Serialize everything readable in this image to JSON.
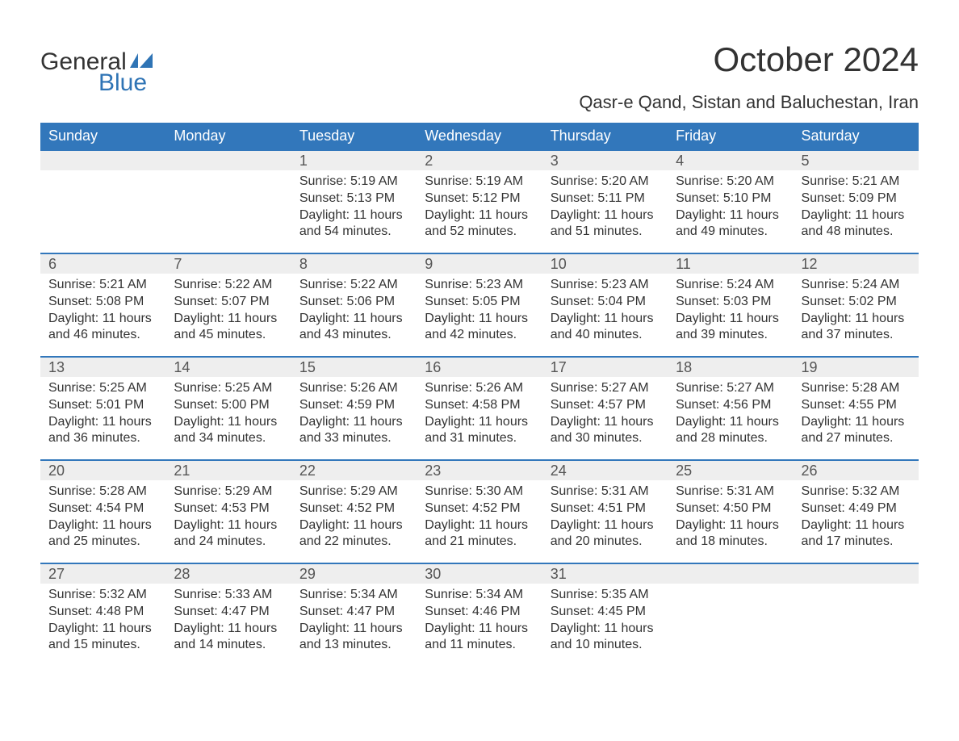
{
  "logo": {
    "line1": "General",
    "line2": "Blue"
  },
  "title": "October 2024",
  "location": "Qasr-e Qand, Sistan and Baluchestan, Iran",
  "colors": {
    "header": "#3277bb",
    "header_text": "#ffffff",
    "daynum_bg": "#eeeeee",
    "text": "#333333",
    "accent": "#2f74b5"
  },
  "day_names": [
    "Sunday",
    "Monday",
    "Tuesday",
    "Wednesday",
    "Thursday",
    "Friday",
    "Saturday"
  ],
  "weeks": [
    [
      {
        "n": "",
        "sunrise": "",
        "sunset": "",
        "daylight": ""
      },
      {
        "n": "",
        "sunrise": "",
        "sunset": "",
        "daylight": ""
      },
      {
        "n": "1",
        "sunrise": "Sunrise: 5:19 AM",
        "sunset": "Sunset: 5:13 PM",
        "daylight": "Daylight: 11 hours and 54 minutes."
      },
      {
        "n": "2",
        "sunrise": "Sunrise: 5:19 AM",
        "sunset": "Sunset: 5:12 PM",
        "daylight": "Daylight: 11 hours and 52 minutes."
      },
      {
        "n": "3",
        "sunrise": "Sunrise: 5:20 AM",
        "sunset": "Sunset: 5:11 PM",
        "daylight": "Daylight: 11 hours and 51 minutes."
      },
      {
        "n": "4",
        "sunrise": "Sunrise: 5:20 AM",
        "sunset": "Sunset: 5:10 PM",
        "daylight": "Daylight: 11 hours and 49 minutes."
      },
      {
        "n": "5",
        "sunrise": "Sunrise: 5:21 AM",
        "sunset": "Sunset: 5:09 PM",
        "daylight": "Daylight: 11 hours and 48 minutes."
      }
    ],
    [
      {
        "n": "6",
        "sunrise": "Sunrise: 5:21 AM",
        "sunset": "Sunset: 5:08 PM",
        "daylight": "Daylight: 11 hours and 46 minutes."
      },
      {
        "n": "7",
        "sunrise": "Sunrise: 5:22 AM",
        "sunset": "Sunset: 5:07 PM",
        "daylight": "Daylight: 11 hours and 45 minutes."
      },
      {
        "n": "8",
        "sunrise": "Sunrise: 5:22 AM",
        "sunset": "Sunset: 5:06 PM",
        "daylight": "Daylight: 11 hours and 43 minutes."
      },
      {
        "n": "9",
        "sunrise": "Sunrise: 5:23 AM",
        "sunset": "Sunset: 5:05 PM",
        "daylight": "Daylight: 11 hours and 42 minutes."
      },
      {
        "n": "10",
        "sunrise": "Sunrise: 5:23 AM",
        "sunset": "Sunset: 5:04 PM",
        "daylight": "Daylight: 11 hours and 40 minutes."
      },
      {
        "n": "11",
        "sunrise": "Sunrise: 5:24 AM",
        "sunset": "Sunset: 5:03 PM",
        "daylight": "Daylight: 11 hours and 39 minutes."
      },
      {
        "n": "12",
        "sunrise": "Sunrise: 5:24 AM",
        "sunset": "Sunset: 5:02 PM",
        "daylight": "Daylight: 11 hours and 37 minutes."
      }
    ],
    [
      {
        "n": "13",
        "sunrise": "Sunrise: 5:25 AM",
        "sunset": "Sunset: 5:01 PM",
        "daylight": "Daylight: 11 hours and 36 minutes."
      },
      {
        "n": "14",
        "sunrise": "Sunrise: 5:25 AM",
        "sunset": "Sunset: 5:00 PM",
        "daylight": "Daylight: 11 hours and 34 minutes."
      },
      {
        "n": "15",
        "sunrise": "Sunrise: 5:26 AM",
        "sunset": "Sunset: 4:59 PM",
        "daylight": "Daylight: 11 hours and 33 minutes."
      },
      {
        "n": "16",
        "sunrise": "Sunrise: 5:26 AM",
        "sunset": "Sunset: 4:58 PM",
        "daylight": "Daylight: 11 hours and 31 minutes."
      },
      {
        "n": "17",
        "sunrise": "Sunrise: 5:27 AM",
        "sunset": "Sunset: 4:57 PM",
        "daylight": "Daylight: 11 hours and 30 minutes."
      },
      {
        "n": "18",
        "sunrise": "Sunrise: 5:27 AM",
        "sunset": "Sunset: 4:56 PM",
        "daylight": "Daylight: 11 hours and 28 minutes."
      },
      {
        "n": "19",
        "sunrise": "Sunrise: 5:28 AM",
        "sunset": "Sunset: 4:55 PM",
        "daylight": "Daylight: 11 hours and 27 minutes."
      }
    ],
    [
      {
        "n": "20",
        "sunrise": "Sunrise: 5:28 AM",
        "sunset": "Sunset: 4:54 PM",
        "daylight": "Daylight: 11 hours and 25 minutes."
      },
      {
        "n": "21",
        "sunrise": "Sunrise: 5:29 AM",
        "sunset": "Sunset: 4:53 PM",
        "daylight": "Daylight: 11 hours and 24 minutes."
      },
      {
        "n": "22",
        "sunrise": "Sunrise: 5:29 AM",
        "sunset": "Sunset: 4:52 PM",
        "daylight": "Daylight: 11 hours and 22 minutes."
      },
      {
        "n": "23",
        "sunrise": "Sunrise: 5:30 AM",
        "sunset": "Sunset: 4:52 PM",
        "daylight": "Daylight: 11 hours and 21 minutes."
      },
      {
        "n": "24",
        "sunrise": "Sunrise: 5:31 AM",
        "sunset": "Sunset: 4:51 PM",
        "daylight": "Daylight: 11 hours and 20 minutes."
      },
      {
        "n": "25",
        "sunrise": "Sunrise: 5:31 AM",
        "sunset": "Sunset: 4:50 PM",
        "daylight": "Daylight: 11 hours and 18 minutes."
      },
      {
        "n": "26",
        "sunrise": "Sunrise: 5:32 AM",
        "sunset": "Sunset: 4:49 PM",
        "daylight": "Daylight: 11 hours and 17 minutes."
      }
    ],
    [
      {
        "n": "27",
        "sunrise": "Sunrise: 5:32 AM",
        "sunset": "Sunset: 4:48 PM",
        "daylight": "Daylight: 11 hours and 15 minutes."
      },
      {
        "n": "28",
        "sunrise": "Sunrise: 5:33 AM",
        "sunset": "Sunset: 4:47 PM",
        "daylight": "Daylight: 11 hours and 14 minutes."
      },
      {
        "n": "29",
        "sunrise": "Sunrise: 5:34 AM",
        "sunset": "Sunset: 4:47 PM",
        "daylight": "Daylight: 11 hours and 13 minutes."
      },
      {
        "n": "30",
        "sunrise": "Sunrise: 5:34 AM",
        "sunset": "Sunset: 4:46 PM",
        "daylight": "Daylight: 11 hours and 11 minutes."
      },
      {
        "n": "31",
        "sunrise": "Sunrise: 5:35 AM",
        "sunset": "Sunset: 4:45 PM",
        "daylight": "Daylight: 11 hours and 10 minutes."
      },
      {
        "n": "",
        "sunrise": "",
        "sunset": "",
        "daylight": ""
      },
      {
        "n": "",
        "sunrise": "",
        "sunset": "",
        "daylight": ""
      }
    ]
  ]
}
